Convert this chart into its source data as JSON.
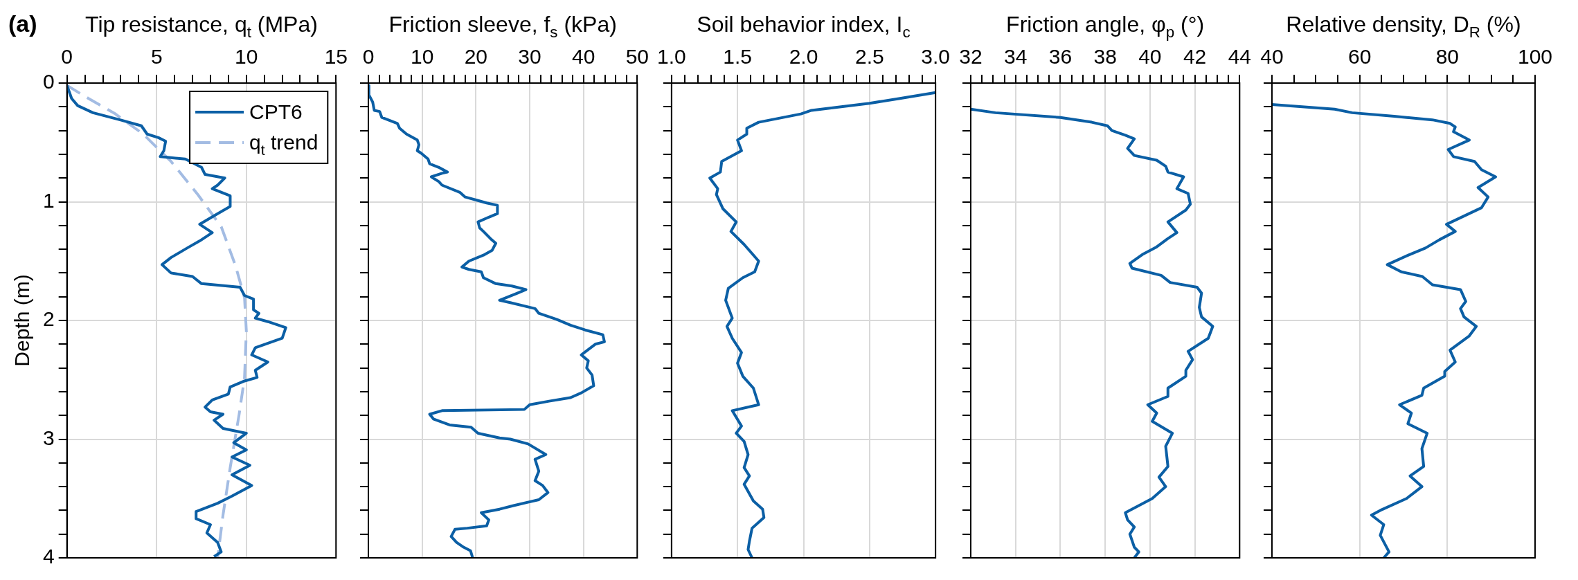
{
  "chart_data": [
    {
      "type": "line",
      "xlabel": "Tip resistance, q$_{t}$ (MPa)",
      "ylabel": "Depth (m)",
      "annotations": [
        "(a)"
      ],
      "xlim": [
        0,
        15
      ],
      "xticks": [
        0,
        {
          "value": 1,
          "label": null
        },
        {
          "value": 2,
          "label": null
        },
        {
          "value": 3,
          "label": null
        },
        {
          "value": 4,
          "label": null
        },
        5,
        {
          "value": 6,
          "label": null
        },
        {
          "value": 7,
          "label": null
        },
        {
          "value": 8,
          "label": null
        },
        {
          "value": 9,
          "label": null
        },
        10,
        {
          "value": 11,
          "label": null
        },
        {
          "value": 12,
          "label": null
        },
        {
          "value": 13,
          "label": null
        },
        {
          "value": 14,
          "label": null
        },
        15
      ],
      "ylim": [
        4,
        0
      ],
      "yticks": [
        0,
        {
          "value": 0.2,
          "label": null
        },
        {
          "value": 0.4,
          "label": null
        },
        {
          "value": 0.6,
          "label": null
        },
        {
          "value": 0.8,
          "label": null
        },
        1,
        {
          "value": 1.2,
          "label": null
        },
        {
          "value": 1.4,
          "label": null
        },
        {
          "value": 1.6,
          "label": null
        },
        {
          "value": 1.8,
          "label": null
        },
        2,
        {
          "value": 2.2,
          "label": null
        },
        {
          "value": 2.4,
          "label": null
        },
        {
          "value": 2.6,
          "label": null
        },
        {
          "value": 2.8,
          "label": null
        },
        3,
        {
          "value": 3.2,
          "label": null
        },
        {
          "value": 3.4,
          "label": null
        },
        {
          "value": 3.6,
          "label": null
        },
        {
          "value": 3.8,
          "label": null
        },
        4
      ],
      "grid": true,
      "legend": "top right",
      "series": [
        {
          "name": "CPT6",
          "color": "#0b5fa5",
          "line_style": "solid",
          "x": [
            0,
            0.26,
            0.6,
            1.45,
            2.96,
            4.15,
            4.47,
            5.1,
            5.5,
            5.4,
            5.2,
            6.6,
            7.5,
            7.7,
            8.8,
            8.4,
            8.1,
            9.1,
            9.1,
            8.4,
            7.4,
            8.1,
            7.4,
            6.7,
            5.8,
            5.3,
            5.8,
            7.0,
            7.5,
            9.65,
            9.9,
            10.4,
            10.4,
            10.7,
            10.5,
            11.2,
            12.2,
            12.0,
            10.5,
            10.3,
            11.2,
            10.5,
            10.6,
            9.9,
            9.1,
            9.0,
            8.1,
            7.7,
            8.0,
            8.7,
            8.2,
            8.7,
            10.0,
            9.3,
            10.0,
            9.2,
            10.2,
            9.2,
            10.3,
            9.2,
            8.4,
            7.2,
            7.2,
            8.0,
            7.8,
            8.4,
            8.6,
            8.2
          ],
          "values": [
            0.02,
            0.13,
            0.19,
            0.25,
            0.31,
            0.36,
            0.43,
            0.46,
            0.49,
            0.57,
            0.62,
            0.64,
            0.71,
            0.77,
            0.8,
            0.86,
            0.89,
            0.95,
            1.04,
            1.1,
            1.19,
            1.26,
            1.33,
            1.39,
            1.47,
            1.53,
            1.6,
            1.63,
            1.69,
            1.72,
            1.79,
            1.82,
            1.91,
            1.94,
            1.98,
            2.01,
            2.06,
            2.15,
            2.23,
            2.29,
            2.35,
            2.42,
            2.48,
            2.51,
            2.56,
            2.62,
            2.67,
            2.73,
            2.77,
            2.79,
            2.84,
            2.91,
            2.95,
            3.03,
            3.09,
            3.15,
            3.22,
            3.3,
            3.39,
            3.48,
            3.54,
            3.61,
            3.67,
            3.72,
            3.79,
            3.87,
            3.95,
            3.99
          ]
        },
        {
          "name": "q$_{t}$ trend",
          "color": "#a3bce3",
          "line_style": "dashed",
          "x": [
            0,
            1.2,
            2.7,
            4.25,
            5.8,
            7.3,
            8.6,
            9.4,
            9.9,
            10.0,
            9.9,
            9.6,
            9.1,
            8.7,
            8.4
          ],
          "values": [
            0.02,
            0.13,
            0.26,
            0.43,
            0.66,
            0.94,
            1.21,
            1.54,
            1.81,
            2.09,
            2.48,
            2.79,
            3.24,
            3.64,
            4.0
          ]
        }
      ]
    },
    {
      "type": "line",
      "xlabel": "Friction sleeve, f$_{s}$ (kPa)",
      "xlim": [
        0,
        50
      ],
      "xticks": [
        0,
        {
          "value": 2,
          "label": null
        },
        {
          "value": 4,
          "label": null
        },
        {
          "value": 6,
          "label": null
        },
        {
          "value": 8,
          "label": null
        },
        10,
        {
          "value": 12,
          "label": null
        },
        {
          "value": 14,
          "label": null
        },
        {
          "value": 16,
          "label": null
        },
        {
          "value": 18,
          "label": null
        },
        20,
        {
          "value": 22,
          "label": null
        },
        {
          "value": 24,
          "label": null
        },
        {
          "value": 26,
          "label": null
        },
        {
          "value": 28,
          "label": null
        },
        30,
        {
          "value": 32,
          "label": null
        },
        {
          "value": 34,
          "label": null
        },
        {
          "value": 36,
          "label": null
        },
        {
          "value": 38,
          "label": null
        },
        40,
        {
          "value": 42,
          "label": null
        },
        {
          "value": 44,
          "label": null
        },
        {
          "value": 46,
          "label": null
        },
        {
          "value": 48,
          "label": null
        },
        50
      ],
      "ylim": [
        4,
        0
      ],
      "yticks": [
        0,
        {
          "value": 0.2,
          "label": null
        },
        {
          "value": 0.4,
          "label": null
        },
        {
          "value": 0.6,
          "label": null
        },
        {
          "value": 0.8,
          "label": null
        },
        1,
        {
          "value": 1.2,
          "label": null
        },
        {
          "value": 1.4,
          "label": null
        },
        {
          "value": 1.6,
          "label": null
        },
        {
          "value": 1.8,
          "label": null
        },
        2,
        {
          "value": 2.2,
          "label": null
        },
        {
          "value": 2.4,
          "label": null
        },
        {
          "value": 2.6,
          "label": null
        },
        {
          "value": 2.8,
          "label": null
        },
        3,
        {
          "value": 3.2,
          "label": null
        },
        {
          "value": 3.4,
          "label": null
        },
        {
          "value": 3.6,
          "label": null
        },
        {
          "value": 3.8,
          "label": null
        },
        4
      ],
      "tick_labels": "x",
      "grid": true,
      "series": [
        {
          "color": "#0b5fa5",
          "x": [
            0,
            0.1,
            0.8,
            1.1,
            2.1,
            2.5,
            5.4,
            5.8,
            7.1,
            9.1,
            9.4,
            9.1,
            9.8,
            11.1,
            11.4,
            13.1,
            14.7,
            13.7,
            11.7,
            13.1,
            13.7,
            17.0,
            18.0,
            20.4,
            22.0,
            24.0,
            24.0,
            22.4,
            20.4,
            20.7,
            21.4,
            22.7,
            23.7,
            23.0,
            21.4,
            18.7,
            17.4,
            18.7,
            21.0,
            21.4,
            23.7,
            26.7,
            29.3,
            27.7,
            24.4,
            26.4,
            31.0,
            31.7,
            35.0,
            37.6,
            40.3,
            43.6,
            43.9,
            42.2,
            39.6,
            40.9,
            40.6,
            41.6,
            41.9,
            39.6,
            37.6,
            33.6,
            30.0,
            29.0,
            13.7,
            11.4,
            12.1,
            15.1,
            19.1,
            20.4,
            24.4,
            26.4,
            29.7,
            33.0,
            31.0,
            31.7,
            31.0,
            32.4,
            33.4,
            31.7,
            27.0,
            24.4,
            21.0,
            22.4,
            22.0,
            18.4,
            16.1,
            15.4,
            16.4,
            17.7,
            19.0,
            19.4
          ],
          "values": [
            0.02,
            0.1,
            0.16,
            0.23,
            0.24,
            0.29,
            0.34,
            0.38,
            0.43,
            0.48,
            0.52,
            0.57,
            0.59,
            0.64,
            0.68,
            0.71,
            0.75,
            0.76,
            0.79,
            0.83,
            0.86,
            0.92,
            0.96,
            0.99,
            1.01,
            1.03,
            1.1,
            1.13,
            1.17,
            1.22,
            1.25,
            1.31,
            1.35,
            1.41,
            1.45,
            1.5,
            1.55,
            1.57,
            1.59,
            1.64,
            1.69,
            1.71,
            1.74,
            1.77,
            1.83,
            1.85,
            1.9,
            1.94,
            1.99,
            2.04,
            2.08,
            2.12,
            2.18,
            2.2,
            2.29,
            2.34,
            2.4,
            2.46,
            2.55,
            2.61,
            2.65,
            2.68,
            2.71,
            2.75,
            2.76,
            2.79,
            2.83,
            2.88,
            2.9,
            2.95,
            2.99,
            3.0,
            3.04,
            3.13,
            3.17,
            3.27,
            3.35,
            3.39,
            3.45,
            3.51,
            3.56,
            3.59,
            3.62,
            3.68,
            3.73,
            3.75,
            3.76,
            3.82,
            3.87,
            3.91,
            3.94,
            4.0
          ]
        }
      ]
    },
    {
      "type": "line",
      "xlabel": "Soil behavior index, I$_{c}$",
      "xlim": [
        1,
        3
      ],
      "xticks": [
        {
          "value": 1,
          "label": "1.0"
        },
        {
          "value": 1.1,
          "label": null
        },
        {
          "value": 1.2,
          "label": null
        },
        {
          "value": 1.3,
          "label": null
        },
        {
          "value": 1.4,
          "label": null
        },
        1.5,
        {
          "value": 1.6,
          "label": null
        },
        {
          "value": 1.7,
          "label": null
        },
        {
          "value": 1.8,
          "label": null
        },
        {
          "value": 1.9,
          "label": null
        },
        {
          "value": 2,
          "label": "2.0"
        },
        {
          "value": 2.1,
          "label": null
        },
        {
          "value": 2.2,
          "label": null
        },
        {
          "value": 2.3,
          "label": null
        },
        {
          "value": 2.4,
          "label": null
        },
        2.5,
        {
          "value": 2.6,
          "label": null
        },
        {
          "value": 2.7,
          "label": null
        },
        {
          "value": 2.8,
          "label": null
        },
        {
          "value": 2.9,
          "label": null
        },
        {
          "value": 3,
          "label": "3.0"
        }
      ],
      "ylim": [
        4,
        0
      ],
      "yticks": [
        0,
        {
          "value": 0.2,
          "label": null
        },
        {
          "value": 0.4,
          "label": null
        },
        {
          "value": 0.6,
          "label": null
        },
        {
          "value": 0.8,
          "label": null
        },
        1,
        {
          "value": 1.2,
          "label": null
        },
        {
          "value": 1.4,
          "label": null
        },
        {
          "value": 1.6,
          "label": null
        },
        {
          "value": 1.8,
          "label": null
        },
        2,
        {
          "value": 2.2,
          "label": null
        },
        {
          "value": 2.4,
          "label": null
        },
        {
          "value": 2.6,
          "label": null
        },
        {
          "value": 2.8,
          "label": null
        },
        3,
        {
          "value": 3.2,
          "label": null
        },
        {
          "value": 3.4,
          "label": null
        },
        {
          "value": 3.6,
          "label": null
        },
        {
          "value": 3.8,
          "label": null
        },
        4
      ],
      "tick_labels": "x",
      "grid": true,
      "series": [
        {
          "color": "#0b5fa5",
          "x": [
            3.0,
            2.73,
            2.5,
            2.06,
            1.98,
            1.66,
            1.57,
            1.57,
            1.5,
            1.53,
            1.38,
            1.37,
            1.29,
            1.35,
            1.34,
            1.39,
            1.49,
            1.45,
            1.55,
            1.66,
            1.63,
            1.54,
            1.43,
            1.41,
            1.46,
            1.42,
            1.46,
            1.53,
            1.5,
            1.54,
            1.62,
            1.66,
            1.46,
            1.53,
            1.49,
            1.55,
            1.58,
            1.55,
            1.59,
            1.55,
            1.62,
            1.69,
            1.7,
            1.61,
            1.59,
            1.58,
            1.61
          ],
          "values": [
            0.08,
            0.13,
            0.17,
            0.23,
            0.26,
            0.33,
            0.38,
            0.43,
            0.48,
            0.57,
            0.66,
            0.75,
            0.8,
            0.89,
            0.94,
            1.06,
            1.17,
            1.25,
            1.36,
            1.5,
            1.59,
            1.64,
            1.73,
            1.83,
            1.98,
            2.05,
            2.15,
            2.27,
            2.36,
            2.47,
            2.57,
            2.71,
            2.76,
            2.89,
            2.95,
            3.02,
            3.13,
            3.24,
            3.31,
            3.38,
            3.52,
            3.59,
            3.66,
            3.75,
            3.86,
            3.93,
            4.0
          ]
        }
      ]
    },
    {
      "type": "line",
      "xlabel": "Friction angle, φ$_{p}$ (°)",
      "xlim": [
        32,
        44
      ],
      "xticks": [
        32,
        {
          "value": 32.5,
          "label": null
        },
        {
          "value": 33,
          "label": null
        },
        {
          "value": 33.5,
          "label": null
        },
        34,
        {
          "value": 34.5,
          "label": null
        },
        {
          "value": 35,
          "label": null
        },
        {
          "value": 35.5,
          "label": null
        },
        36,
        {
          "value": 36.5,
          "label": null
        },
        {
          "value": 37,
          "label": null
        },
        {
          "value": 37.5,
          "label": null
        },
        38,
        {
          "value": 38.5,
          "label": null
        },
        {
          "value": 39,
          "label": null
        },
        {
          "value": 39.5,
          "label": null
        },
        40,
        {
          "value": 40.5,
          "label": null
        },
        {
          "value": 41,
          "label": null
        },
        {
          "value": 41.5,
          "label": null
        },
        42,
        {
          "value": 42.5,
          "label": null
        },
        {
          "value": 43,
          "label": null
        },
        {
          "value": 43.5,
          "label": null
        },
        44
      ],
      "ylim": [
        4,
        0
      ],
      "yticks": [
        0,
        {
          "value": 0.2,
          "label": null
        },
        {
          "value": 0.4,
          "label": null
        },
        {
          "value": 0.6,
          "label": null
        },
        {
          "value": 0.8,
          "label": null
        },
        1,
        {
          "value": 1.2,
          "label": null
        },
        {
          "value": 1.4,
          "label": null
        },
        {
          "value": 1.6,
          "label": null
        },
        {
          "value": 1.8,
          "label": null
        },
        2,
        {
          "value": 2.2,
          "label": null
        },
        {
          "value": 2.4,
          "label": null
        },
        {
          "value": 2.6,
          "label": null
        },
        {
          "value": 2.8,
          "label": null
        },
        3,
        {
          "value": 3.2,
          "label": null
        },
        {
          "value": 3.4,
          "label": null
        },
        {
          "value": 3.6,
          "label": null
        },
        {
          "value": 3.8,
          "label": null
        },
        4
      ],
      "tick_labels": "x",
      "grid": true,
      "series": [
        {
          "color": "#0b5fa5",
          "x": [
            32.0,
            33.1,
            36.0,
            37.4,
            38.1,
            38.3,
            38.9,
            39.3,
            39.0,
            39.3,
            40.3,
            40.7,
            40.8,
            41.5,
            41.2,
            41.7,
            41.8,
            41.6,
            40.8,
            41.2,
            40.8,
            40.3,
            39.7,
            39.1,
            39.2,
            40.5,
            40.9,
            42.1,
            42.3,
            42.2,
            42.3,
            42.8,
            42.6,
            41.7,
            41.9,
            41.6,
            41.6,
            40.8,
            40.8,
            39.9,
            40.3,
            40.1,
            41.0,
            40.7,
            40.8,
            40.4,
            40.7,
            40.1,
            38.9,
            39.0,
            39.3,
            39.1,
            39.3,
            39.5,
            39.3
          ],
          "values": [
            0.22,
            0.25,
            0.29,
            0.33,
            0.36,
            0.4,
            0.44,
            0.47,
            0.55,
            0.61,
            0.65,
            0.7,
            0.75,
            0.79,
            0.89,
            0.93,
            1.02,
            1.07,
            1.17,
            1.26,
            1.31,
            1.38,
            1.44,
            1.52,
            1.56,
            1.62,
            1.68,
            1.72,
            1.77,
            1.89,
            1.97,
            2.05,
            2.15,
            2.26,
            2.33,
            2.42,
            2.47,
            2.57,
            2.64,
            2.71,
            2.78,
            2.85,
            2.95,
            3.06,
            3.23,
            3.32,
            3.4,
            3.5,
            3.62,
            3.68,
            3.74,
            3.8,
            3.91,
            3.95,
            4.0
          ]
        }
      ]
    },
    {
      "type": "line",
      "xlabel": "Relative density, D$_{R}$ (%)",
      "xlim": [
        40,
        100
      ],
      "xticks": [
        40,
        {
          "value": 45,
          "label": null
        },
        {
          "value": 50,
          "label": null
        },
        {
          "value": 55,
          "label": null
        },
        60,
        {
          "value": 65,
          "label": null
        },
        {
          "value": 70,
          "label": null
        },
        {
          "value": 75,
          "label": null
        },
        80,
        {
          "value": 85,
          "label": null
        },
        {
          "value": 90,
          "label": null
        },
        {
          "value": 95,
          "label": null
        },
        100
      ],
      "ylim": [
        4,
        0
      ],
      "yticks": [
        0,
        {
          "value": 0.2,
          "label": null
        },
        {
          "value": 0.4,
          "label": null
        },
        {
          "value": 0.6,
          "label": null
        },
        {
          "value": 0.8,
          "label": null
        },
        1,
        {
          "value": 1.2,
          "label": null
        },
        {
          "value": 1.4,
          "label": null
        },
        {
          "value": 1.6,
          "label": null
        },
        {
          "value": 1.8,
          "label": null
        },
        2,
        {
          "value": 2.2,
          "label": null
        },
        {
          "value": 2.4,
          "label": null
        },
        {
          "value": 2.6,
          "label": null
        },
        {
          "value": 2.8,
          "label": null
        },
        3,
        {
          "value": 3.2,
          "label": null
        },
        {
          "value": 3.4,
          "label": null
        },
        {
          "value": 3.6,
          "label": null
        },
        {
          "value": 3.8,
          "label": null
        },
        4
      ],
      "tick_labels": "x",
      "grid": true,
      "series": [
        {
          "color": "#0b5fa5",
          "x": [
            40.0,
            54.3,
            58.3,
            67.9,
            76.6,
            80.6,
            81.8,
            81.4,
            85.0,
            80.2,
            81.4,
            86.2,
            87.8,
            91.0,
            87.0,
            89.3,
            87.8,
            83.8,
            79.8,
            81.8,
            78.2,
            75.0,
            71.1,
            66.3,
            69.5,
            74.3,
            76.6,
            83.0,
            84.2,
            83.0,
            83.8,
            86.6,
            85.0,
            80.6,
            81.8,
            79.4,
            79.4,
            74.6,
            74.2,
            69.1,
            71.8,
            71.0,
            75.4,
            74.2,
            74.6,
            71.5,
            74.2,
            70.7,
            64.7,
            62.7,
            65.5,
            64.7,
            66.7,
            65.5
          ],
          "values": [
            0.18,
            0.22,
            0.25,
            0.28,
            0.31,
            0.34,
            0.37,
            0.41,
            0.48,
            0.56,
            0.62,
            0.66,
            0.73,
            0.79,
            0.88,
            0.96,
            1.05,
            1.12,
            1.19,
            1.25,
            1.32,
            1.39,
            1.45,
            1.53,
            1.59,
            1.63,
            1.7,
            1.74,
            1.84,
            1.9,
            1.97,
            2.05,
            2.13,
            2.25,
            2.35,
            2.43,
            2.47,
            2.57,
            2.63,
            2.71,
            2.78,
            2.87,
            2.95,
            3.08,
            3.23,
            3.31,
            3.4,
            3.5,
            3.6,
            3.64,
            3.72,
            3.81,
            3.95,
            4.0
          ]
        }
      ]
    }
  ]
}
